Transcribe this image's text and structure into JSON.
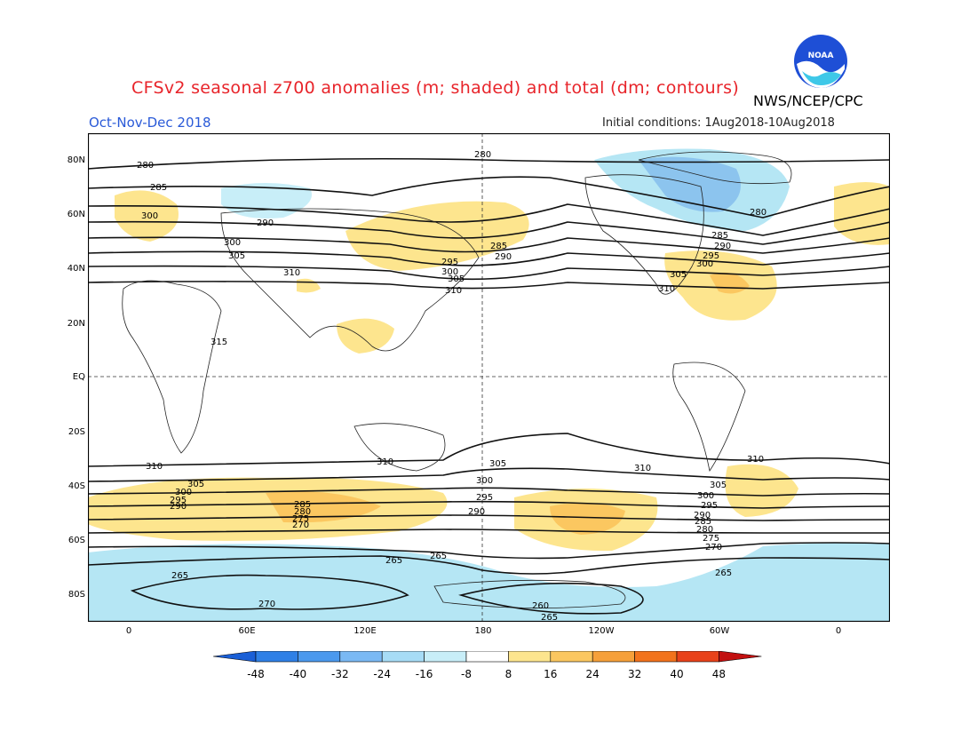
{
  "header": {
    "title": "CFSv2 seasonal z700 anomalies (m; shaded) and total (dm; contours)",
    "agency": "NWS/NCEP/CPC",
    "season": "Oct-Nov-Dec 2018",
    "initial_conditions": "Initial conditions: 1Aug2018-10Aug2018",
    "logo_text": "NOAA"
  },
  "map": {
    "lat_labels": [
      "80N",
      "60N",
      "40N",
      "20N",
      "EQ",
      "20S",
      "40S",
      "60S",
      "80S"
    ],
    "lon_labels": [
      "0",
      "60E",
      "120E",
      "180",
      "120W",
      "60W",
      "0"
    ],
    "contour_labels": [
      "280",
      "285",
      "290",
      "295",
      "300",
      "305",
      "310",
      "315",
      "310",
      "305",
      "300",
      "295",
      "290",
      "285",
      "280",
      "275",
      "270",
      "265",
      "260"
    ]
  },
  "colorbar": {
    "labels": [
      "-48",
      "-40",
      "-32",
      "-24",
      "-16",
      "-8",
      "8",
      "16",
      "24",
      "32",
      "40",
      "48"
    ],
    "colors": [
      "#1a5fd6",
      "#2f80e6",
      "#4b99ee",
      "#7ab9f4",
      "#a7dcf6",
      "#c8eef8",
      "#ffffff",
      "#fde58e",
      "#fbc760",
      "#f6a03a",
      "#f2731c",
      "#e8421a",
      "#c21010"
    ]
  }
}
